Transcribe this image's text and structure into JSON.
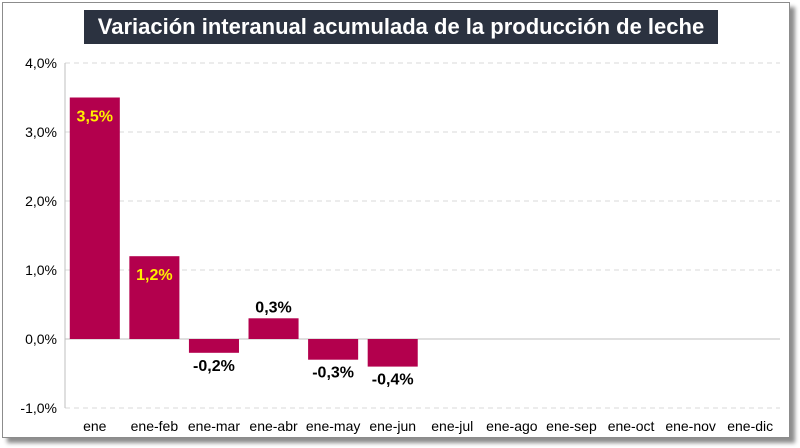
{
  "chart_data": {
    "type": "bar",
    "title": "Variación interanual acumulada de la producción de leche",
    "categories": [
      "ene",
      "ene-feb",
      "ene-mar",
      "ene-abr",
      "ene-may",
      "ene-jun",
      "ene-jul",
      "ene-ago",
      "ene-sep",
      "ene-oct",
      "ene-nov",
      "ene-dic"
    ],
    "values": [
      3.5,
      1.2,
      -0.2,
      0.3,
      -0.3,
      -0.4,
      null,
      null,
      null,
      null,
      null,
      null
    ],
    "data_labels": [
      "3,5%",
      "1,2%",
      "-0,2%",
      "0,3%",
      "-0,3%",
      "-0,4%",
      "",
      "",
      "",
      "",
      "",
      ""
    ],
    "ylim": [
      -1.0,
      4.0
    ],
    "yticks": [
      4.0,
      3.0,
      2.0,
      1.0,
      0.0,
      -1.0
    ],
    "ytick_labels": [
      "4,0%",
      "3,0%",
      "2,0%",
      "1,0%",
      "0,0%",
      "-1,0%"
    ],
    "grid": true,
    "colors": {
      "bar": "#b3004d",
      "label_inside": "#ffee00",
      "label_outside": "#000000",
      "title_bg": "#2b3240",
      "grid": "#d9d9d9"
    }
  }
}
